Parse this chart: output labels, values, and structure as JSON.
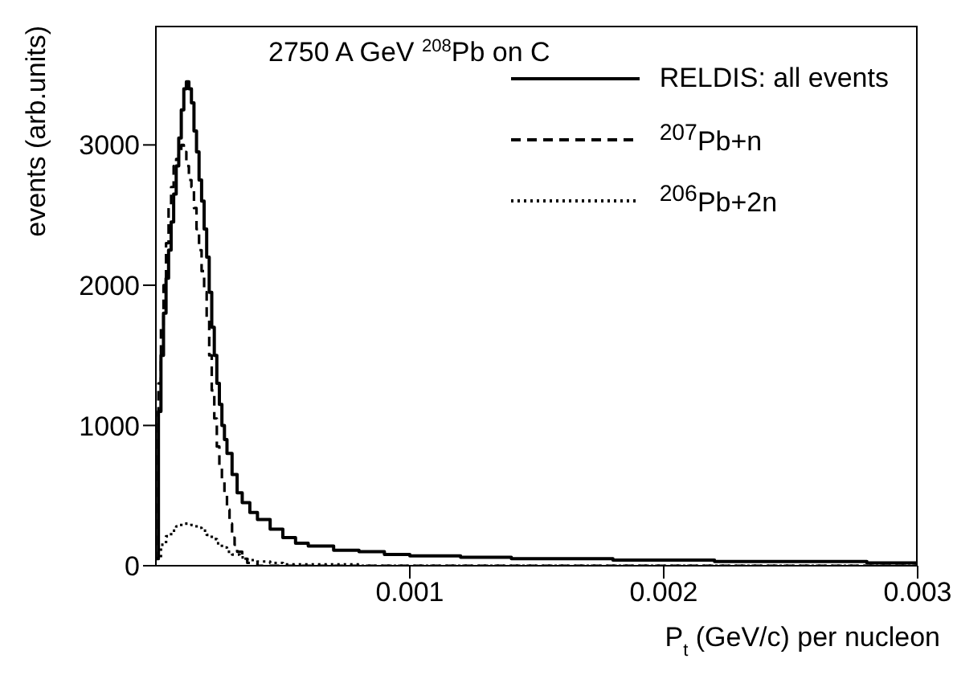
{
  "chart_data": {
    "type": "step",
    "title": "2750 A GeV $^{208}$Pb on C",
    "xlabel": "P$_{t}$ (GeV/c) per nucleon",
    "ylabel": "events (arb.units)",
    "xlim": [
      0,
      0.003
    ],
    "xticks": [
      0.001,
      0.002,
      0.003
    ],
    "ylim": [
      0,
      3850
    ],
    "yticks": [
      0,
      1000,
      2000,
      3000
    ],
    "legend": "top right",
    "marker": "none",
    "series": [
      {
        "name": "RELDIS: all events",
        "color": "#000000",
        "line_style": "solid",
        "x": [
          0,
          1e-05,
          2e-05,
          3e-05,
          4e-05,
          5e-05,
          6e-05,
          7e-05,
          8e-05,
          9e-05,
          0.0001,
          0.00011,
          0.00012,
          0.00013,
          0.00014,
          0.00015,
          0.00016,
          0.00017,
          0.00018,
          0.00019,
          0.0002,
          0.00021,
          0.00022,
          0.00023,
          0.00024,
          0.00025,
          0.00026,
          0.00027,
          0.00028,
          0.0003,
          0.00032,
          0.00034,
          0.00037,
          0.0004,
          0.00045,
          0.0005,
          0.00055,
          0.0006,
          0.0007,
          0.0008,
          0.0009,
          0.001,
          0.0012,
          0.0014,
          0.0016,
          0.0018,
          0.002,
          0.0022,
          0.0025,
          0.0028,
          0.003
        ],
        "values": [
          50,
          1100,
          1500,
          1800,
          2050,
          2250,
          2450,
          2650,
          2850,
          3050,
          3250,
          3400,
          3450,
          3400,
          3300,
          3100,
          2950,
          2750,
          2600,
          2400,
          2200,
          1950,
          1700,
          1500,
          1300,
          1150,
          1000,
          900,
          800,
          650,
          520,
          450,
          380,
          330,
          260,
          200,
          160,
          140,
          110,
          100,
          80,
          70,
          60,
          50,
          50,
          40,
          40,
          30,
          30,
          20,
          20
        ]
      },
      {
        "name": "$^{207}$Pb+n",
        "color": "#000000",
        "line_style": "dashed",
        "x": [
          0,
          1e-05,
          2e-05,
          3e-05,
          4e-05,
          5e-05,
          6e-05,
          7e-05,
          8e-05,
          9e-05,
          0.0001,
          0.00011,
          0.00012,
          0.00013,
          0.00014,
          0.00015,
          0.00016,
          0.00017,
          0.00018,
          0.00019,
          0.0002,
          0.00021,
          0.00022,
          0.00023,
          0.00024,
          0.00025,
          0.00026,
          0.00027,
          0.00028,
          0.00029,
          0.0003,
          0.00031,
          0.00032,
          0.00034,
          0.00036,
          0.0004,
          0.003
        ],
        "values": [
          50,
          1300,
          1700,
          2000,
          2300,
          2550,
          2700,
          2850,
          2900,
          2950,
          3000,
          2950,
          2850,
          2750,
          2700,
          2550,
          2400,
          2250,
          2100,
          1950,
          1750,
          1500,
          1250,
          1050,
          850,
          700,
          600,
          500,
          400,
          300,
          200,
          150,
          100,
          50,
          20,
          0,
          0
        ]
      },
      {
        "name": "$^{206}$Pb+2n",
        "color": "#000000",
        "line_style": "dotted",
        "x": [
          0,
          2e-05,
          4e-05,
          6e-05,
          8e-05,
          0.0001,
          0.00012,
          0.00014,
          0.00016,
          0.00018,
          0.0002,
          0.00022,
          0.00024,
          0.00026,
          0.00028,
          0.0003,
          0.00033,
          0.00036,
          0.0004,
          0.00045,
          0.0005,
          0.0006,
          0.0008,
          0.003
        ],
        "values": [
          50,
          150,
          210,
          250,
          280,
          300,
          300,
          290,
          270,
          250,
          220,
          190,
          160,
          130,
          100,
          80,
          60,
          40,
          30,
          20,
          10,
          10,
          0,
          0
        ]
      }
    ]
  }
}
